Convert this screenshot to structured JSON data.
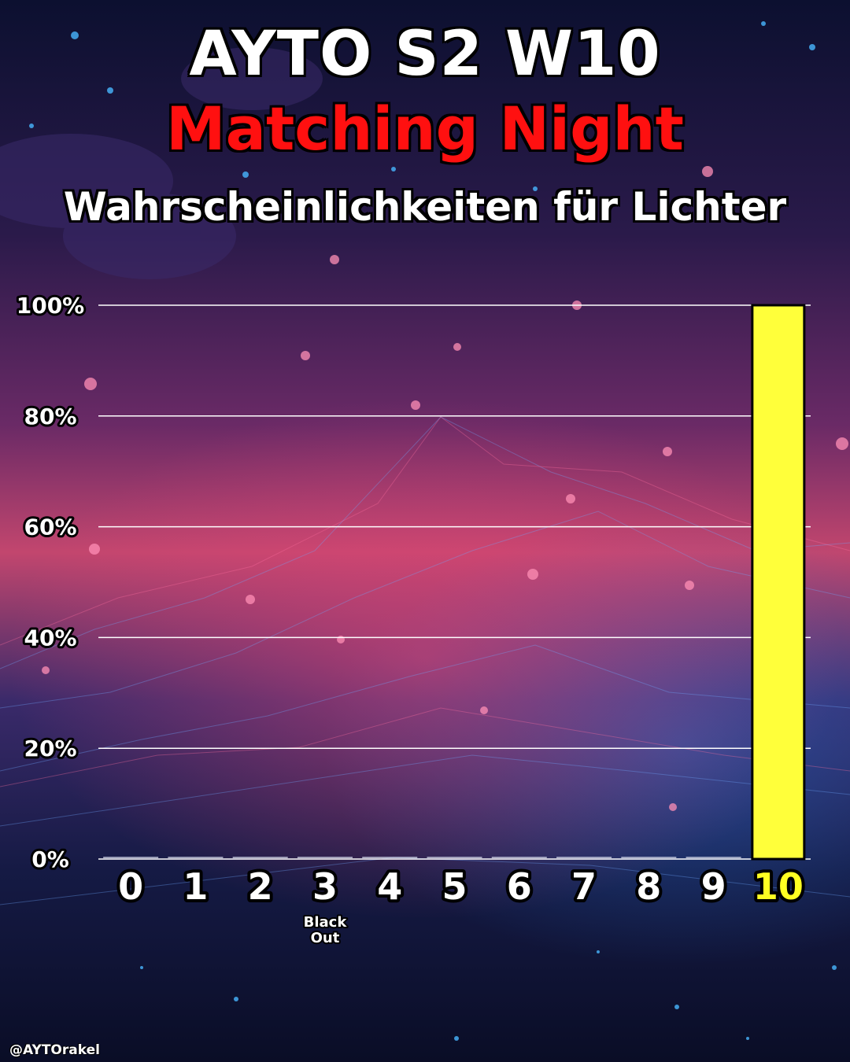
{
  "title": "AYTO S2  W10",
  "subtitle": "Matching Night",
  "caption": "Wahrscheinlichkeiten für Lichter",
  "watermark": "@AYTOrakel",
  "colors": {
    "title": "#ffffff",
    "subtitle": "#ff1010",
    "bar": "#ffff3a",
    "highlight_label": "#ffff22",
    "label": "#ffffff"
  },
  "chart_data": {
    "type": "bar",
    "categories": [
      "0",
      "1",
      "2",
      "3",
      "4",
      "5",
      "6",
      "7",
      "8",
      "9",
      "10"
    ],
    "values": [
      0,
      0,
      0,
      0,
      0,
      0,
      0,
      0,
      0,
      0,
      100
    ],
    "ylim": [
      0,
      100
    ],
    "y_ticks": [
      "0%",
      "20%",
      "40%",
      "60%",
      "80%",
      "100%"
    ],
    "highlight_category": "10",
    "annotation": {
      "category": "3",
      "lines": [
        "Black",
        "Out"
      ]
    },
    "grid": true,
    "legend": "none"
  }
}
